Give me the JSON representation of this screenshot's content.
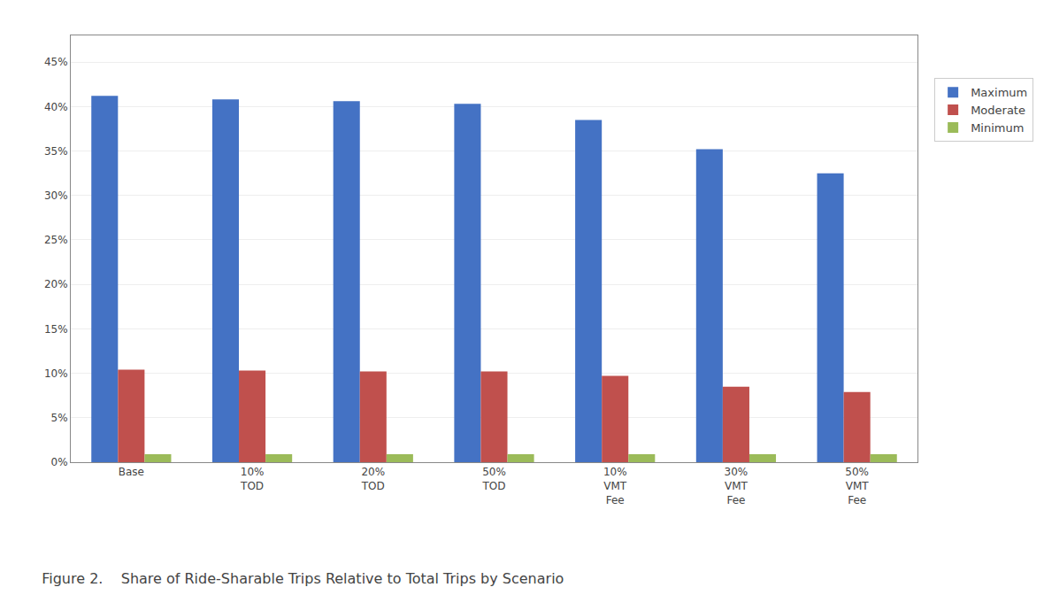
{
  "chart_data": {
    "type": "bar",
    "title": "Figure 2.    Share of Ride-Sharable Trips Relative to Total Trips by Scenario",
    "categories": [
      "Base",
      "10%\nTOD",
      "20%\nTOD",
      "50%\nTOD",
      "10%\nVMT\nFee",
      "30%\nVMT\nFee",
      "50%\nVMT\nFee"
    ],
    "series": [
      {
        "name": "Maximum",
        "color": "#4472C4",
        "values": [
          0.412,
          0.408,
          0.406,
          0.403,
          0.385,
          0.352,
          0.325
        ]
      },
      {
        "name": "Moderate",
        "color": "#C0504D",
        "values": [
          0.104,
          0.103,
          0.102,
          0.102,
          0.097,
          0.085,
          0.079
        ]
      },
      {
        "name": "Minimum",
        "color": "#9BBB59",
        "values": [
          0.009,
          0.009,
          0.009,
          0.009,
          0.009,
          0.009,
          0.009
        ]
      }
    ],
    "ylim": [
      0,
      0.48
    ],
    "yticks": [
      {
        "value": 0.0,
        "label": "0%"
      },
      {
        "value": 0.05,
        "label": "5%"
      },
      {
        "value": 0.1,
        "label": "10%"
      },
      {
        "value": 0.15,
        "label": "15%"
      },
      {
        "value": 0.2,
        "label": "20%"
      },
      {
        "value": 0.25,
        "label": "25%"
      },
      {
        "value": 0.3,
        "label": "30%"
      },
      {
        "value": 0.35,
        "label": "35%"
      },
      {
        "value": 0.4,
        "label": "40%"
      },
      {
        "value": 0.45,
        "label": "45%"
      }
    ],
    "grid": true,
    "legend": "right"
  }
}
